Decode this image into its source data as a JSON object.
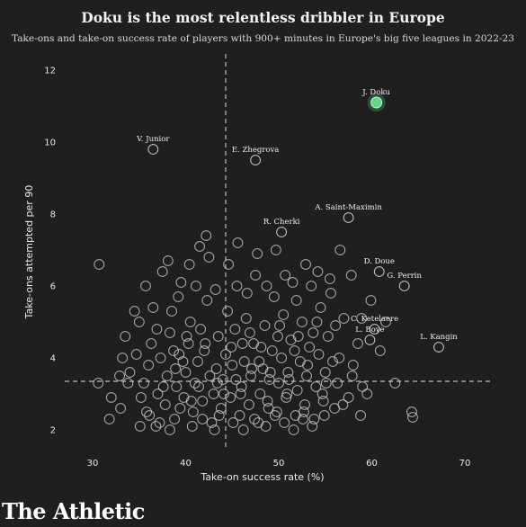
{
  "title": "Doku is the most relentless dribbler in Europe",
  "subtitle": "Take-ons and take-on success rate of players with 900+ minutes in Europe's big five leagues in 2022-23",
  "brand": "The Athletic",
  "colors": {
    "background": "#1f1f1f",
    "point_stroke": "#c8c8c8",
    "highlight": "#5fd88a",
    "reference_line": "#bdbdbd",
    "text": "#e9e9e9"
  },
  "chart_data": {
    "type": "scatter",
    "xlabel": "Take-on success rate (%)",
    "ylabel": "Take-ons attempted per 90",
    "xlim": [
      27,
      73
    ],
    "ylim": [
      1.5,
      12.4
    ],
    "xticks": [
      30,
      40,
      50,
      60,
      70
    ],
    "yticks": [
      2,
      4,
      6,
      8,
      10,
      12
    ],
    "grid": false,
    "reference_lines": {
      "x": 44.3,
      "y": 3.35
    },
    "labeled_points": [
      {
        "label": "J. Doku",
        "x": 60.5,
        "y": 11.1,
        "highlight": true
      },
      {
        "label": "V. Junior",
        "x": 36.5,
        "y": 9.8
      },
      {
        "label": "E. Zhegrova",
        "x": 47.5,
        "y": 9.5
      },
      {
        "label": "R. Cherki",
        "x": 50.3,
        "y": 7.5
      },
      {
        "label": "A. Saint-Maximin",
        "x": 57.5,
        "y": 7.9
      },
      {
        "label": "D. Doue",
        "x": 60.8,
        "y": 6.4
      },
      {
        "label": "G. Perrin",
        "x": 63.5,
        "y": 6.0
      },
      {
        "label": "C. Ketelaere",
        "x": 60.3,
        "y": 4.8
      },
      {
        "label": "L. Boye",
        "x": 59.8,
        "y": 4.5
      },
      {
        "label": "L. Kangin",
        "x": 67.2,
        "y": 4.3
      }
    ],
    "points": [
      [
        30.7,
        6.6
      ],
      [
        30.6,
        3.3
      ],
      [
        31.8,
        2.3
      ],
      [
        32.0,
        2.9
      ],
      [
        33.0,
        2.6
      ],
      [
        33.8,
        3.3
      ],
      [
        34.0,
        3.6
      ],
      [
        33.5,
        4.6
      ],
      [
        34.7,
        4.1
      ],
      [
        35.0,
        5.0
      ],
      [
        35.2,
        2.9
      ],
      [
        35.5,
        3.3
      ],
      [
        35.8,
        2.5
      ],
      [
        36.0,
        3.8
      ],
      [
        36.3,
        4.4
      ],
      [
        36.5,
        5.4
      ],
      [
        36.8,
        2.1
      ],
      [
        37.0,
        3.0
      ],
      [
        37.3,
        4.0
      ],
      [
        37.5,
        6.4
      ],
      [
        37.8,
        2.7
      ],
      [
        38.0,
        3.5
      ],
      [
        38.3,
        4.7
      ],
      [
        38.5,
        5.3
      ],
      [
        38.8,
        2.3
      ],
      [
        39.0,
        3.2
      ],
      [
        39.3,
        4.1
      ],
      [
        39.5,
        6.1
      ],
      [
        39.8,
        2.9
      ],
      [
        40.0,
        3.6
      ],
      [
        40.3,
        4.4
      ],
      [
        40.5,
        5.0
      ],
      [
        40.8,
        2.5
      ],
      [
        41.0,
        3.3
      ],
      [
        41.3,
        3.9
      ],
      [
        41.5,
        7.1
      ],
      [
        41.8,
        2.8
      ],
      [
        42.0,
        4.2
      ],
      [
        42.3,
        5.6
      ],
      [
        42.5,
        6.8
      ],
      [
        42.8,
        2.2
      ],
      [
        43.0,
        3.0
      ],
      [
        43.3,
        3.7
      ],
      [
        43.5,
        4.6
      ],
      [
        43.8,
        2.6
      ],
      [
        44.0,
        3.4
      ],
      [
        44.3,
        4.1
      ],
      [
        44.5,
        5.3
      ],
      [
        44.8,
        2.9
      ],
      [
        45.0,
        3.8
      ],
      [
        45.3,
        4.8
      ],
      [
        45.5,
        6.0
      ],
      [
        45.8,
        2.4
      ],
      [
        46.0,
        3.2
      ],
      [
        46.3,
        3.9
      ],
      [
        46.5,
        5.1
      ],
      [
        46.8,
        2.7
      ],
      [
        47.0,
        3.5
      ],
      [
        47.3,
        4.4
      ],
      [
        47.5,
        6.3
      ],
      [
        47.8,
        2.2
      ],
      [
        48.0,
        3.0
      ],
      [
        48.3,
        3.7
      ],
      [
        48.5,
        4.9
      ],
      [
        48.8,
        2.8
      ],
      [
        49.0,
        3.4
      ],
      [
        49.3,
        4.2
      ],
      [
        49.5,
        5.7
      ],
      [
        49.8,
        2.5
      ],
      [
        50.0,
        3.3
      ],
      [
        50.3,
        4.0
      ],
      [
        50.5,
        5.2
      ],
      [
        50.8,
        2.9
      ],
      [
        51.0,
        3.6
      ],
      [
        51.3,
        4.5
      ],
      [
        51.5,
        6.1
      ],
      [
        51.8,
        2.4
      ],
      [
        52.0,
        3.1
      ],
      [
        52.3,
        3.9
      ],
      [
        52.5,
        5.0
      ],
      [
        52.8,
        2.7
      ],
      [
        53.0,
        3.5
      ],
      [
        53.3,
        4.3
      ],
      [
        53.5,
        6.0
      ],
      [
        53.8,
        2.3
      ],
      [
        54.0,
        3.2
      ],
      [
        54.3,
        4.1
      ],
      [
        54.5,
        5.4
      ],
      [
        54.8,
        2.8
      ],
      [
        55.0,
        3.6
      ],
      [
        55.3,
        4.6
      ],
      [
        55.5,
        6.2
      ],
      [
        56.0,
        2.6
      ],
      [
        56.3,
        3.3
      ],
      [
        56.5,
        4.0
      ],
      [
        57.0,
        5.1
      ],
      [
        57.5,
        2.9
      ],
      [
        58.0,
        3.8
      ],
      [
        58.5,
        4.4
      ],
      [
        59.0,
        3.2
      ],
      [
        33.2,
        4.0
      ],
      [
        34.5,
        5.3
      ],
      [
        35.7,
        6.0
      ],
      [
        36.9,
        4.8
      ],
      [
        38.1,
        6.7
      ],
      [
        39.2,
        5.7
      ],
      [
        40.4,
        6.6
      ],
      [
        41.1,
        6.0
      ],
      [
        42.2,
        7.4
      ],
      [
        43.2,
        5.9
      ],
      [
        44.6,
        6.6
      ],
      [
        45.6,
        7.2
      ],
      [
        46.6,
        5.8
      ],
      [
        47.7,
        6.9
      ],
      [
        48.7,
        6.0
      ],
      [
        49.7,
        7.0
      ],
      [
        50.7,
        6.3
      ],
      [
        51.9,
        5.6
      ],
      [
        52.9,
        6.6
      ],
      [
        54.2,
        6.4
      ],
      [
        55.6,
        5.8
      ],
      [
        56.6,
        7.0
      ],
      [
        57.8,
        6.3
      ],
      [
        58.9,
        5.1
      ],
      [
        59.9,
        5.6
      ],
      [
        38.7,
        4.2
      ],
      [
        39.7,
        3.9
      ],
      [
        40.6,
        2.8
      ],
      [
        41.6,
        4.8
      ],
      [
        42.6,
        3.5
      ],
      [
        43.6,
        2.4
      ],
      [
        44.9,
        4.3
      ],
      [
        45.9,
        3.0
      ],
      [
        46.9,
        4.7
      ],
      [
        47.9,
        3.9
      ],
      [
        48.9,
        2.6
      ],
      [
        49.9,
        4.6
      ],
      [
        50.9,
        3.0
      ],
      [
        51.7,
        4.2
      ],
      [
        52.7,
        2.5
      ],
      [
        53.7,
        4.7
      ],
      [
        54.7,
        3.0
      ],
      [
        55.8,
        3.9
      ],
      [
        56.9,
        2.7
      ],
      [
        57.9,
        3.5
      ],
      [
        58.8,
        2.4
      ],
      [
        59.5,
        3.0
      ],
      [
        60.9,
        4.2
      ],
      [
        61.5,
        5.0
      ],
      [
        62.5,
        3.3
      ],
      [
        64.3,
        2.5
      ],
      [
        64.4,
        2.35
      ],
      [
        35.1,
        2.1
      ],
      [
        36.1,
        2.4
      ],
      [
        37.2,
        2.2
      ],
      [
        38.3,
        2.0
      ],
      [
        39.4,
        2.6
      ],
      [
        40.7,
        2.1
      ],
      [
        41.8,
        2.3
      ],
      [
        43.1,
        2.0
      ],
      [
        45.1,
        2.2
      ],
      [
        46.2,
        2.0
      ],
      [
        47.4,
        2.3
      ],
      [
        48.6,
        2.1
      ],
      [
        49.6,
        2.4
      ],
      [
        50.6,
        2.2
      ],
      [
        51.6,
        2.0
      ],
      [
        52.6,
        2.3
      ],
      [
        53.6,
        2.1
      ],
      [
        54.9,
        2.4
      ],
      [
        37.6,
        3.2
      ],
      [
        38.9,
        3.7
      ],
      [
        40.1,
        4.6
      ],
      [
        41.4,
        3.2
      ],
      [
        42.1,
        4.4
      ],
      [
        43.4,
        3.3
      ],
      [
        44.1,
        3.0
      ],
      [
        45.4,
        3.4
      ],
      [
        46.1,
        4.4
      ],
      [
        47.1,
        3.7
      ],
      [
        48.1,
        4.3
      ],
      [
        49.1,
        3.6
      ],
      [
        50.1,
        4.9
      ],
      [
        51.1,
        3.4
      ],
      [
        52.1,
        4.6
      ],
      [
        53.1,
        3.8
      ],
      [
        54.1,
        5.0
      ],
      [
        55.1,
        3.3
      ],
      [
        56.1,
        4.9
      ],
      [
        32.9,
        3.5
      ]
    ]
  }
}
